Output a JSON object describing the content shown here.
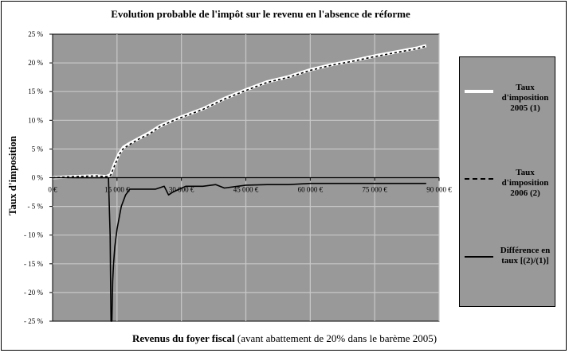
{
  "chart_data": {
    "type": "line",
    "title": "Evolution probable de l'impôt sur le revenu en l'absence de réforme",
    "ylabel": "Taux d'imposition",
    "xlabel_bold": "Revenus du foyer fiscal",
    "xlabel_rest": "(avant abattement de 20% dans le barème 2005)",
    "xlim": [
      0,
      90000
    ],
    "ylim": [
      -25,
      25
    ],
    "x_ticks": [
      0,
      15000,
      30000,
      45000,
      60000,
      75000,
      90000
    ],
    "x_tick_labels": [
      "0 €",
      "15 000 €",
      "30 000 €",
      "45 000 €",
      "60 000 €",
      "75 000 €",
      "90 000 €"
    ],
    "y_ticks": [
      25,
      20,
      15,
      10,
      5,
      0,
      -5,
      -10,
      -15,
      -20,
      -25
    ],
    "y_tick_labels": [
      "25 %",
      "20 %",
      "15 %",
      "10 %",
      "5 %",
      "0 %",
      "- 5 %",
      "- 10 %",
      "- 15 %",
      "- 20 %",
      "- 25 %"
    ],
    "grid": true,
    "legend_position": "right",
    "colors": {
      "plot_bg": "#999999",
      "grid": "#c8c8c8",
      "rate2005": "#ffffff",
      "rate2006": "#000000",
      "diff": "#000000"
    },
    "series": [
      {
        "name": "Taux d'imposition 2005 (1)",
        "x": [
          0,
          5000,
          10000,
          12500,
          13500,
          14500,
          15500,
          16500,
          18000,
          20000,
          22500,
          25000,
          28000,
          30000,
          35000,
          40000,
          45000,
          50000,
          55000,
          60000,
          65000,
          70000,
          75000,
          80000,
          85000,
          87000
        ],
        "y": [
          0,
          0.2,
          0.3,
          0.2,
          0.5,
          2.5,
          4.2,
          5.3,
          6.0,
          6.8,
          7.8,
          9.0,
          10.0,
          10.6,
          12.0,
          13.8,
          15.3,
          16.7,
          17.6,
          18.8,
          19.7,
          20.4,
          21.2,
          21.9,
          22.6,
          23.0
        ]
      },
      {
        "name": "Taux d'imposition 2006 (2)",
        "x": [
          0,
          5000,
          10000,
          12500,
          13500,
          14500,
          15500,
          16500,
          18000,
          20000,
          22500,
          25000,
          28000,
          30000,
          35000,
          40000,
          45000,
          50000,
          55000,
          60000,
          65000,
          70000,
          75000,
          80000,
          85000,
          87000
        ],
        "y": [
          0,
          0.2,
          0.3,
          0.2,
          0.4,
          2.2,
          4.0,
          5.1,
          5.8,
          6.7,
          7.6,
          8.9,
          9.9,
          10.5,
          11.9,
          13.7,
          15.2,
          16.6,
          17.5,
          18.7,
          19.6,
          20.3,
          21.1,
          21.8,
          22.5,
          22.9
        ]
      },
      {
        "name": "Différence en taux [(2)/(1)]",
        "x": [
          0,
          12000,
          13000,
          13400,
          13600,
          13800,
          14000,
          14200,
          14500,
          15000,
          15500,
          16000,
          17000,
          18000,
          20000,
          22000,
          24000,
          26000,
          27000,
          28000,
          29500,
          31000,
          33000,
          35000,
          38000,
          40000,
          45000,
          50000,
          55000,
          60000,
          70000,
          80000,
          87000
        ],
        "y": [
          0,
          0,
          0,
          -10,
          -25,
          -25,
          -18,
          -15,
          -12,
          -9,
          -7,
          -5,
          -3,
          -2,
          -2,
          -2,
          -2,
          -1.5,
          -3,
          -2.5,
          -2,
          -1.5,
          -1.5,
          -1.5,
          -1.2,
          -1.8,
          -1.3,
          -1.2,
          -1.2,
          -1.0,
          -1.0,
          -1.0,
          -1.0
        ]
      }
    ]
  }
}
